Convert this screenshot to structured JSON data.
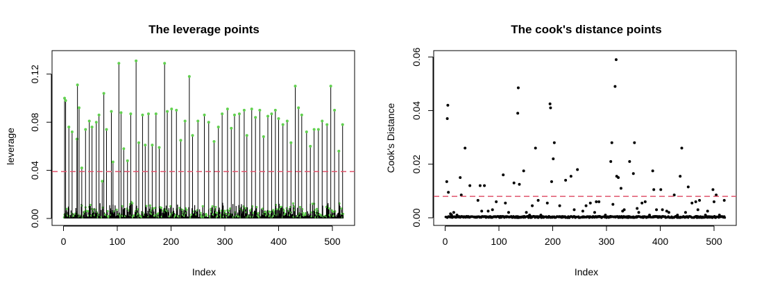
{
  "chart_data": [
    {
      "type": "scatter",
      "title": "The leverage points",
      "xlabel": "Index",
      "ylabel": "leverage",
      "xlim": [
        0,
        520
      ],
      "ylim": [
        0,
        0.132
      ],
      "xticks": [
        0,
        100,
        200,
        300,
        400,
        500
      ],
      "yticks": [
        0.0,
        0.04,
        0.08,
        0.12
      ],
      "ytick_labels": [
        "0.00",
        "0.04",
        "0.08",
        "0.12"
      ],
      "style": "histogram-spikes with points",
      "point_color": "#61D04F",
      "line_color": "#000000",
      "reference_line": {
        "y": 0.039,
        "color": "#DF536B",
        "dash": true
      },
      "series": [
        {
          "x": [
            2,
            4,
            10,
            16,
            25,
            26,
            29,
            34,
            41,
            48,
            53,
            61,
            66,
            72,
            75,
            80,
            89,
            92,
            103,
            107,
            112,
            119,
            125,
            135,
            140,
            147,
            152,
            158,
            165,
            172,
            178,
            188,
            193,
            201,
            210,
            218,
            226,
            234,
            240,
            250,
            262,
            270,
            280,
            288,
            295,
            305,
            312,
            318,
            327,
            336,
            341,
            350,
            357,
            365,
            372,
            380,
            387,
            394,
            400,
            408,
            416,
            423,
            431,
            437,
            443,
            452,
            459,
            466,
            474,
            481,
            490,
            497,
            504,
            512,
            519
          ],
          "y": [
            0.1,
            0.098,
            0.076,
            0.072,
            0.066,
            0.111,
            0.092,
            0.042,
            0.074,
            0.081,
            0.076,
            0.08,
            0.086,
            0.031,
            0.104,
            0.074,
            0.089,
            0.047,
            0.129,
            0.088,
            0.058,
            0.048,
            0.087,
            0.131,
            0.063,
            0.086,
            0.061,
            0.087,
            0.061,
            0.087,
            0.059,
            0.129,
            0.089,
            0.091,
            0.09,
            0.065,
            0.081,
            0.118,
            0.069,
            0.081,
            0.086,
            0.08,
            0.064,
            0.076,
            0.087,
            0.091,
            0.075,
            0.086,
            0.087,
            0.09,
            0.069,
            0.091,
            0.084,
            0.09,
            0.068,
            0.085,
            0.087,
            0.09,
            0.083,
            0.078,
            0.081,
            0.063,
            0.11,
            0.092,
            0.086,
            0.072,
            0.06,
            0.074,
            0.074,
            0.081,
            0.078,
            0.11,
            0.09,
            0.056,
            0.078
          ]
        }
      ]
    },
    {
      "type": "scatter",
      "title": "The cook's distance points",
      "xlabel": "Index",
      "ylabel": "Cook's Distance",
      "xlim": [
        0,
        520
      ],
      "ylim": [
        0,
        0.059
      ],
      "xticks": [
        0,
        100,
        200,
        300,
        400,
        500
      ],
      "yticks": [
        0.0,
        0.02,
        0.04,
        0.06
      ],
      "ytick_labels": [
        "0.00",
        "0.02",
        "0.04",
        "0.06"
      ],
      "point_color": "#000000",
      "reference_line": {
        "y": 0.008,
        "color": "#DF536B",
        "dash": true
      },
      "series": [
        {
          "x": [
            3,
            4,
            5,
            6,
            10,
            12,
            28,
            30,
            37,
            46,
            61,
            65,
            68,
            73,
            80,
            95,
            108,
            112,
            128,
            135,
            136,
            138,
            146,
            151,
            157,
            162,
            168,
            173,
            190,
            195,
            196,
            198,
            201,
            203,
            213,
            224,
            234,
            246,
            256,
            262,
            270,
            281,
            286,
            308,
            310,
            312,
            316,
            318,
            319,
            322,
            327,
            330,
            343,
            350,
            352,
            357,
            366,
            372,
            386,
            388,
            393,
            401,
            412,
            426,
            437,
            440,
            452,
            459,
            466,
            473,
            488,
            498,
            500,
            504,
            519,
            16,
            22,
            88,
            118,
            178,
            240,
            278,
            298,
            333,
            360,
            380,
            404,
            416,
            432,
            447,
            470,
            484,
            510
          ],
          "y": [
            0.0135,
            0.037,
            0.042,
            0.0095,
            0.0015,
            0.001,
            0.015,
            0.0085,
            0.026,
            0.012,
            0.0065,
            0.012,
            0.0025,
            0.012,
            0.0025,
            0.006,
            0.016,
            0.0055,
            0.013,
            0.039,
            0.0485,
            0.0125,
            0.0175,
            0.002,
            0.001,
            0.0045,
            0.026,
            0.0065,
            0.0055,
            0.0425,
            0.041,
            0.0135,
            0.022,
            0.028,
            0.0045,
            0.014,
            0.0155,
            0.018,
            0.0025,
            0.0045,
            0.0055,
            0.006,
            0.006,
            0.021,
            0.028,
            0.005,
            0.049,
            0.059,
            0.0155,
            0.015,
            0.011,
            0.0025,
            0.021,
            0.0165,
            0.028,
            0.0035,
            0.0055,
            0.006,
            0.0175,
            0.0105,
            0.003,
            0.0105,
            0.0025,
            0.0085,
            0.0155,
            0.026,
            0.0115,
            0.0055,
            0.006,
            0.0065,
            0.0025,
            0.0105,
            0.006,
            0.0085,
            0.0065,
            0.002,
            0.001,
            0.003,
            0.002,
            0.001,
            0.003,
            0.002,
            0.001,
            0.003,
            0.002,
            0.001,
            0.003,
            0.002,
            0.001,
            0.002,
            0.003,
            0.001,
            0.001
          ]
        }
      ]
    }
  ]
}
